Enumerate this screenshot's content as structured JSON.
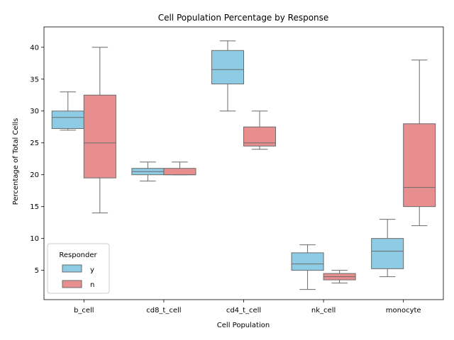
{
  "chart_data": {
    "type": "box",
    "title": "Cell Population Percentage by Response",
    "xlabel": "Cell Population",
    "ylabel": "Percentage of Total Cells",
    "ylim": [
      0.4,
      43.2
    ],
    "yticks": [
      5,
      10,
      15,
      20,
      25,
      30,
      35,
      40
    ],
    "categories": [
      "b_cell",
      "cd8_t_cell",
      "cd4_t_cell",
      "nk_cell",
      "monocyte"
    ],
    "grid": false,
    "legend": {
      "title": "Responder",
      "placement": "lower-left"
    },
    "series": [
      {
        "name": "y",
        "color": "#8ecbe5",
        "boxes": [
          {
            "min": 27,
            "q1": 27.25,
            "median": 29,
            "q3": 30,
            "max": 33
          },
          {
            "min": 19,
            "q1": 20,
            "median": 20.5,
            "q3": 21,
            "max": 22
          },
          {
            "min": 30,
            "q1": 34.25,
            "median": 36.5,
            "q3": 39.5,
            "max": 41
          },
          {
            "min": 2,
            "q1": 5,
            "median": 6,
            "q3": 7.75,
            "max": 9
          },
          {
            "min": 4,
            "q1": 5.25,
            "median": 8,
            "q3": 10,
            "max": 13
          }
        ]
      },
      {
        "name": "n",
        "color": "#e88e8f",
        "boxes": [
          {
            "min": 14,
            "q1": 19.5,
            "median": 25,
            "q3": 32.5,
            "max": 40
          },
          {
            "min": 20,
            "q1": 20,
            "median": 20,
            "q3": 21,
            "max": 22
          },
          {
            "min": 24,
            "q1": 24.5,
            "median": 25,
            "q3": 27.5,
            "max": 30
          },
          {
            "min": 3,
            "q1": 3.5,
            "median": 4,
            "q3": 4.5,
            "max": 5
          },
          {
            "min": 12,
            "q1": 15,
            "median": 18,
            "q3": 28,
            "max": 38
          }
        ]
      }
    ]
  }
}
